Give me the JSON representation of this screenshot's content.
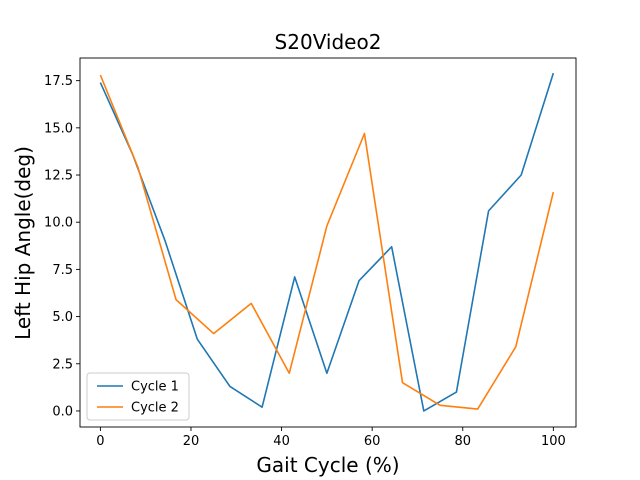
{
  "chart_data": {
    "type": "line",
    "title": "S20Video2",
    "xlabel": "Gait Cycle (%)",
    "ylabel": "Left Hip Angle(deg)",
    "xlim": [
      -4.5,
      105
    ],
    "ylim": [
      -0.85,
      18.7
    ],
    "xticks": [
      0,
      20,
      40,
      60,
      80,
      100
    ],
    "yticks": [
      0.0,
      2.5,
      5.0,
      7.5,
      10.0,
      12.5,
      15.0,
      17.5
    ],
    "xtick_labels": [
      "0",
      "20",
      "40",
      "60",
      "80",
      "100"
    ],
    "ytick_labels": [
      "0.0",
      "2.5",
      "5.0",
      "7.5",
      "10.0",
      "12.5",
      "15.0",
      "17.5"
    ],
    "grid": false,
    "legend_position": "lower-left",
    "series": [
      {
        "name": "Cycle 1",
        "color": "#1f77b4",
        "x": [
          0,
          7.1,
          14.3,
          21.4,
          28.6,
          35.7,
          42.9,
          50.0,
          57.1,
          64.3,
          71.4,
          78.6,
          85.7,
          92.9,
          100
        ],
        "y": [
          17.4,
          13.6,
          9.0,
          3.8,
          1.3,
          0.2,
          7.1,
          2.0,
          6.9,
          8.7,
          0.0,
          1.0,
          10.6,
          12.5,
          17.9
        ]
      },
      {
        "name": "Cycle 2",
        "color": "#ff7f0e",
        "x": [
          0,
          8.3,
          16.7,
          25.0,
          33.3,
          41.7,
          50.0,
          58.3,
          66.7,
          75.0,
          83.3,
          91.7,
          100
        ],
        "y": [
          17.8,
          12.9,
          5.9,
          4.1,
          5.7,
          2.0,
          9.8,
          14.7,
          1.5,
          0.3,
          0.1,
          3.4,
          11.6
        ]
      }
    ]
  }
}
